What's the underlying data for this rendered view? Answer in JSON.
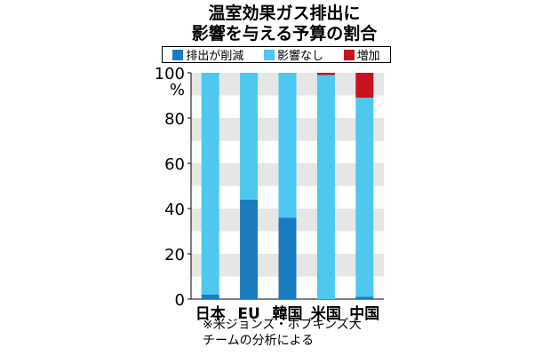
{
  "title_lines": [
    "温室効果ガス排出に",
    "影響を与える予算の割合"
  ],
  "note_lines": [
    "※米ジョンズ・ホプキンズ大",
    "チームの分析による"
  ],
  "colors": {
    "reduce": "#1a7bbf",
    "none": "#4ec8f0",
    "increase": "#c8131e",
    "grid_band": "#e6e6e6"
  },
  "chart_data": {
    "type": "bar",
    "stacked": true,
    "categories": [
      "日本",
      "EU",
      "韓国",
      "米国",
      "中国"
    ],
    "series": [
      {
        "name": "排出が削減",
        "values": [
          2,
          44,
          36,
          0,
          1
        ],
        "color": "#1a7bbf"
      },
      {
        "name": "影響なし",
        "values": [
          98,
          56,
          64,
          99,
          88
        ],
        "color": "#4ec8f0"
      },
      {
        "name": "増加",
        "values": [
          0,
          0,
          0,
          1,
          11
        ],
        "color": "#c8131e"
      }
    ],
    "yticks": [
      0,
      20,
      40,
      60,
      80,
      100
    ],
    "yunit": "%",
    "ylim": [
      0,
      100
    ],
    "legend": "top"
  }
}
